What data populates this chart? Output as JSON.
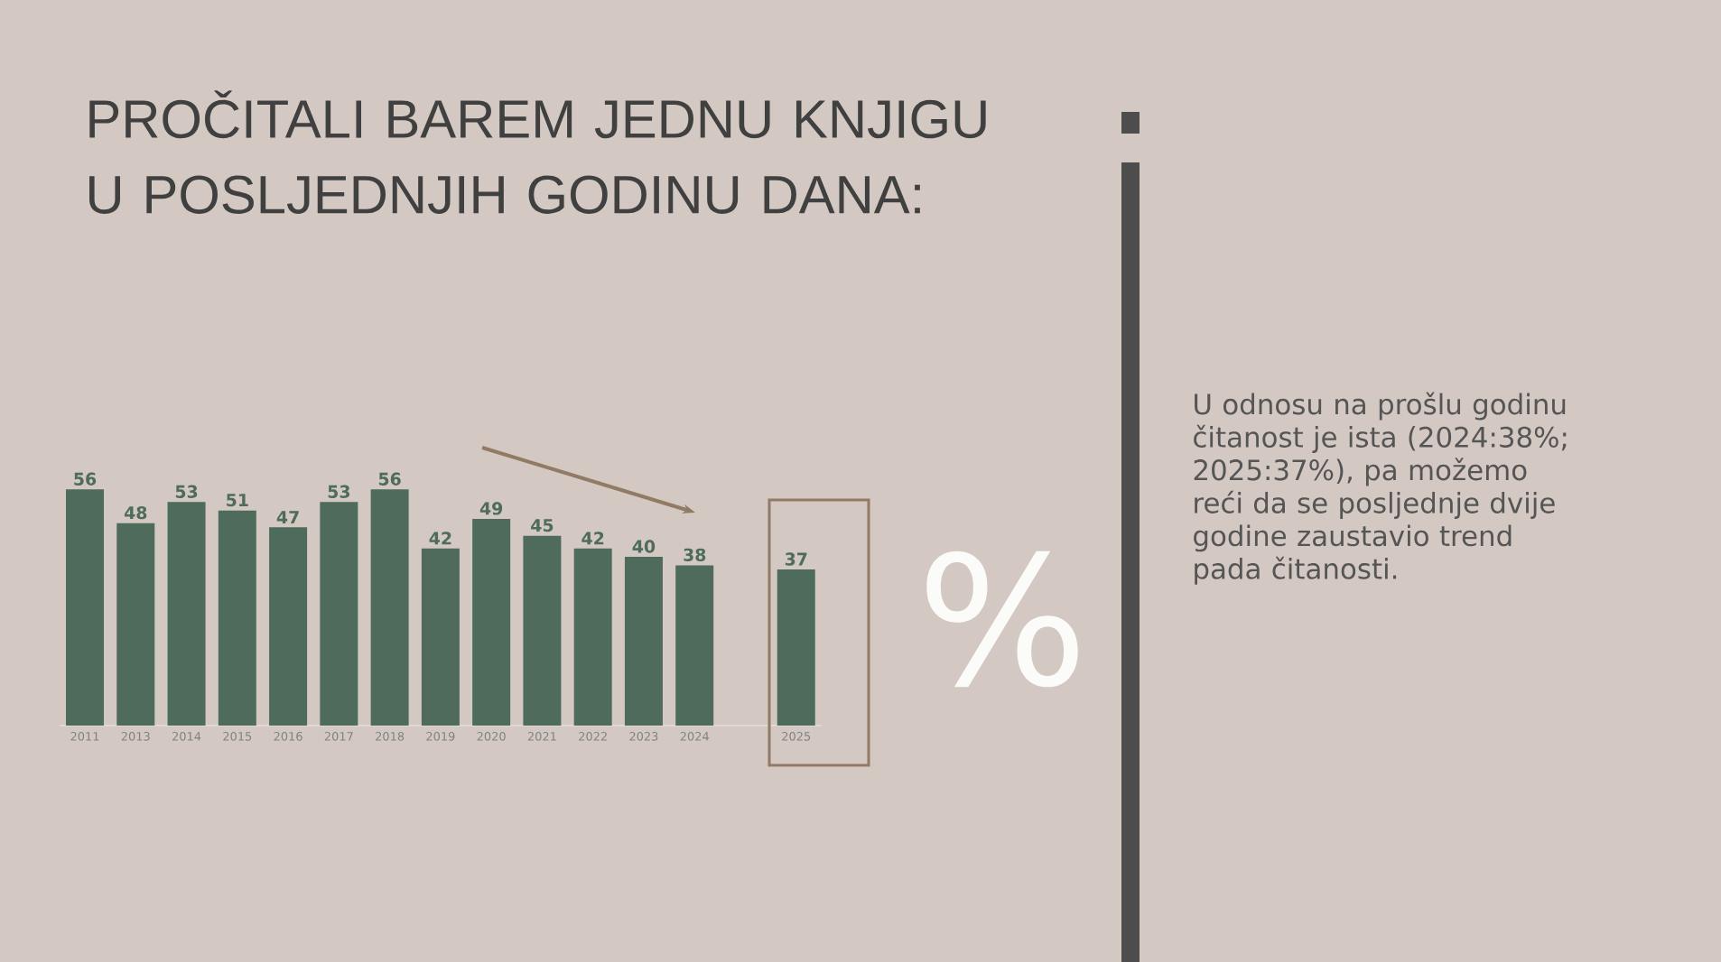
{
  "chart_data": {
    "type": "bar",
    "title": "PROČITALI BAREM JEDNU KNJIGU U POSLJEDNJIH GODINU DANA:",
    "categories": [
      "2011",
      "2013",
      "2014",
      "2015",
      "2016",
      "2017",
      "2018",
      "2019",
      "2020",
      "2021",
      "2022",
      "2023",
      "2024",
      null,
      "2025"
    ],
    "values": [
      56,
      48,
      53,
      51,
      47,
      53,
      56,
      42,
      49,
      45,
      42,
      40,
      38,
      null,
      37
    ],
    "color": "#4e6b5b",
    "tick_labels": "x",
    "data_labels": true,
    "annotations": [
      "%",
      "U odnosu na prošlu godinu čitanost je ista (2024:38%; 2025:37%), pa možemo reći da se posljednje dvije godine zaustavio trend pada čitanosti."
    ]
  }
}
